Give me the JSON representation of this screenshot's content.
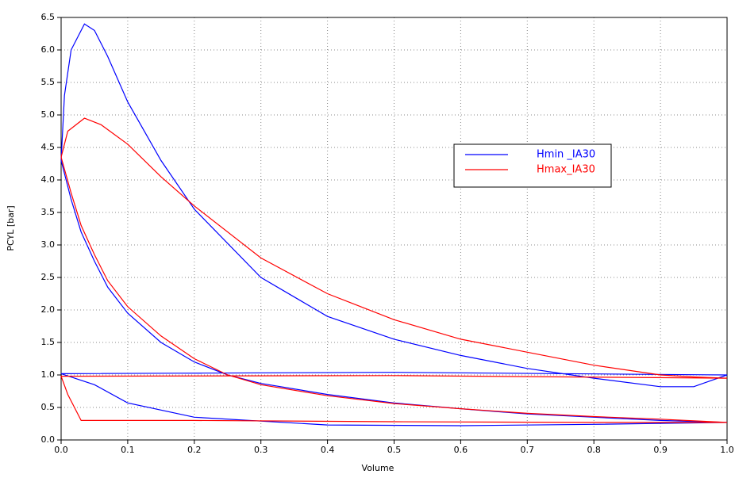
{
  "chart_data": {
    "type": "line",
    "xlabel": "Volume",
    "ylabel": "PCYL [bar]",
    "xlim": [
      0,
      1
    ],
    "ylim": [
      0,
      6.5
    ],
    "grid": true,
    "legend": "upper right",
    "xticks": [
      {
        "value": 0,
        "label": "0.0"
      },
      0.1,
      0.2,
      0.3,
      0.4,
      0.5,
      0.6,
      0.7,
      0.8,
      0.9,
      {
        "value": 1,
        "label": "1.0"
      }
    ],
    "yticks": [
      {
        "value": 0,
        "label": "0.0"
      },
      0.5,
      {
        "value": 1,
        "label": "1.0"
      },
      1.5,
      {
        "value": 2,
        "label": "2.0"
      },
      2.5,
      {
        "value": 3,
        "label": "3.0"
      },
      3.5,
      {
        "value": 4,
        "label": "4.0"
      },
      4.5,
      {
        "value": 5,
        "label": "5.0"
      },
      5.5,
      {
        "value": 6,
        "label": "6.0"
      },
      6.5
    ],
    "series": [
      {
        "name": "Hmin _IA30",
        "color": "#0000ff",
        "x": [
          1.0,
          0.9,
          0.8,
          0.7,
          0.6,
          0.5,
          0.4,
          0.3,
          0.25,
          0.2,
          0.15,
          0.1,
          0.07,
          0.05,
          0.03,
          0.015,
          0.0,
          0.005,
          0.015,
          0.035,
          0.05,
          0.07,
          0.1,
          0.15,
          0.2,
          0.3,
          0.4,
          0.5,
          0.6,
          0.7,
          0.8,
          0.9,
          0.95,
          1.0,
          0.5,
          0.0,
          0.05,
          0.1,
          0.2,
          0.4,
          0.6,
          0.8,
          1.0
        ],
        "values": [
          0.27,
          0.3,
          0.35,
          0.4,
          0.48,
          0.57,
          0.7,
          0.87,
          1.0,
          1.2,
          1.5,
          1.95,
          2.35,
          2.75,
          3.2,
          3.7,
          4.3,
          5.3,
          6.0,
          6.4,
          6.3,
          5.9,
          5.2,
          4.3,
          3.55,
          2.5,
          1.9,
          1.55,
          1.3,
          1.1,
          0.95,
          0.82,
          0.82,
          1.0,
          1.04,
          1.02,
          0.85,
          0.57,
          0.35,
          0.23,
          0.22,
          0.24,
          0.27
        ]
      },
      {
        "name": "Hmax_IA30",
        "color": "#ff0000",
        "x": [
          1.0,
          0.9,
          0.8,
          0.7,
          0.6,
          0.5,
          0.4,
          0.3,
          0.25,
          0.2,
          0.15,
          0.1,
          0.07,
          0.05,
          0.03,
          0.015,
          0.0,
          0.01,
          0.035,
          0.06,
          0.1,
          0.15,
          0.2,
          0.3,
          0.4,
          0.5,
          0.6,
          0.7,
          0.8,
          0.9,
          0.95,
          1.0,
          0.5,
          0.0,
          0.01,
          0.03,
          0.2,
          0.5,
          0.8,
          1.0
        ],
        "values": [
          0.27,
          0.32,
          0.36,
          0.41,
          0.48,
          0.56,
          0.68,
          0.85,
          1.0,
          1.25,
          1.6,
          2.05,
          2.45,
          2.85,
          3.3,
          3.8,
          4.35,
          4.75,
          4.95,
          4.85,
          4.55,
          4.05,
          3.6,
          2.8,
          2.25,
          1.85,
          1.55,
          1.35,
          1.15,
          1.0,
          0.97,
          0.95,
          0.99,
          0.98,
          0.7,
          0.3,
          0.3,
          0.28,
          0.27,
          0.27
        ]
      }
    ]
  }
}
